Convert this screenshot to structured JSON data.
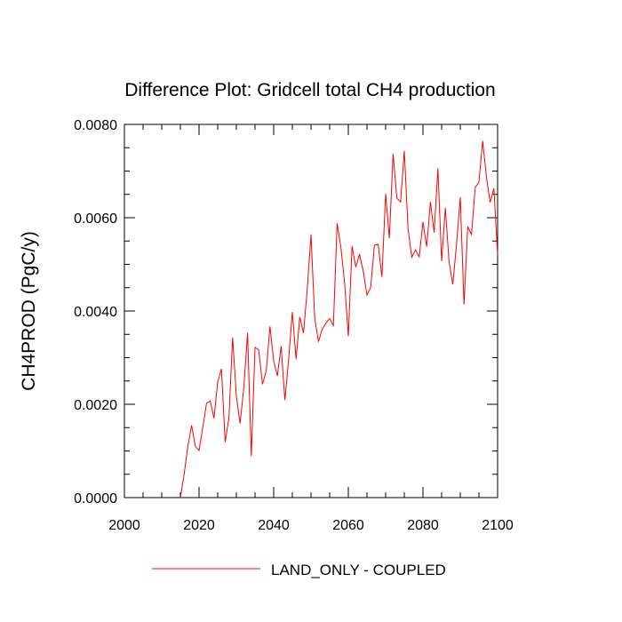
{
  "chart_data": {
    "type": "line",
    "title": "Difference Plot: Gridcell total CH4 production",
    "xlabel": "",
    "ylabel": "CH4PROD  (PgC/y)",
    "xlim": [
      2000,
      2100
    ],
    "ylim": [
      0.0,
      0.008
    ],
    "x_ticks": [
      2000,
      2020,
      2040,
      2060,
      2080,
      2100
    ],
    "x_tick_labels": [
      "2000",
      "2020",
      "2040",
      "2060",
      "2080",
      "2100"
    ],
    "y_ticks": [
      0.0,
      0.002,
      0.004,
      0.006,
      0.008
    ],
    "y_tick_labels": [
      "0.0000",
      "0.0020",
      "0.0040",
      "0.0060",
      "0.0080"
    ],
    "grid": false,
    "legend_position": "bottom-center",
    "series": [
      {
        "name": "LAND_ONLY - COUPLED",
        "color": "#ff0000",
        "x": [
          2015,
          2016,
          2017,
          2018,
          2019,
          2020,
          2021,
          2022,
          2023,
          2024,
          2025,
          2026,
          2027,
          2028,
          2029,
          2030,
          2031,
          2032,
          2033,
          2034,
          2035,
          2036,
          2037,
          2038,
          2039,
          2040,
          2041,
          2042,
          2043,
          2044,
          2045,
          2046,
          2047,
          2048,
          2049,
          2050,
          2051,
          2052,
          2053,
          2054,
          2055,
          2056,
          2057,
          2058,
          2059,
          2060,
          2061,
          2062,
          2063,
          2064,
          2065,
          2066,
          2067,
          2068,
          2069,
          2070,
          2071,
          2072,
          2073,
          2074,
          2075,
          2076,
          2077,
          2078,
          2079,
          2080,
          2081,
          2082,
          2083,
          2084,
          2085,
          2086,
          2087,
          2088,
          2089,
          2090,
          2091,
          2092,
          2093,
          2094,
          2095,
          2096,
          2097,
          2098,
          2099,
          2100
        ],
        "values": [
          0.0,
          0.0005,
          0.0011,
          0.00155,
          0.0011,
          0.00101,
          0.0015,
          0.00202,
          0.00207,
          0.0017,
          0.00248,
          0.00276,
          0.00119,
          0.0017,
          0.00343,
          0.00218,
          0.00159,
          0.00236,
          0.00353,
          0.00089,
          0.00322,
          0.00316,
          0.00243,
          0.00271,
          0.00367,
          0.00293,
          0.00261,
          0.00325,
          0.00209,
          0.00295,
          0.00398,
          0.00297,
          0.00387,
          0.00353,
          0.00447,
          0.00564,
          0.00385,
          0.00334,
          0.00361,
          0.00374,
          0.00384,
          0.00369,
          0.00588,
          0.00537,
          0.00461,
          0.00346,
          0.00539,
          0.00494,
          0.00522,
          0.00485,
          0.00434,
          0.00451,
          0.00541,
          0.00543,
          0.00473,
          0.00651,
          0.00556,
          0.00737,
          0.00642,
          0.00634,
          0.00743,
          0.00577,
          0.00515,
          0.00531,
          0.00516,
          0.00591,
          0.00538,
          0.00634,
          0.00568,
          0.00706,
          0.00507,
          0.00621,
          0.00505,
          0.00457,
          0.00543,
          0.00644,
          0.00414,
          0.00581,
          0.00564,
          0.00665,
          0.00676,
          0.00765,
          0.00688,
          0.00633,
          0.00663,
          0.0052
        ]
      }
    ]
  }
}
